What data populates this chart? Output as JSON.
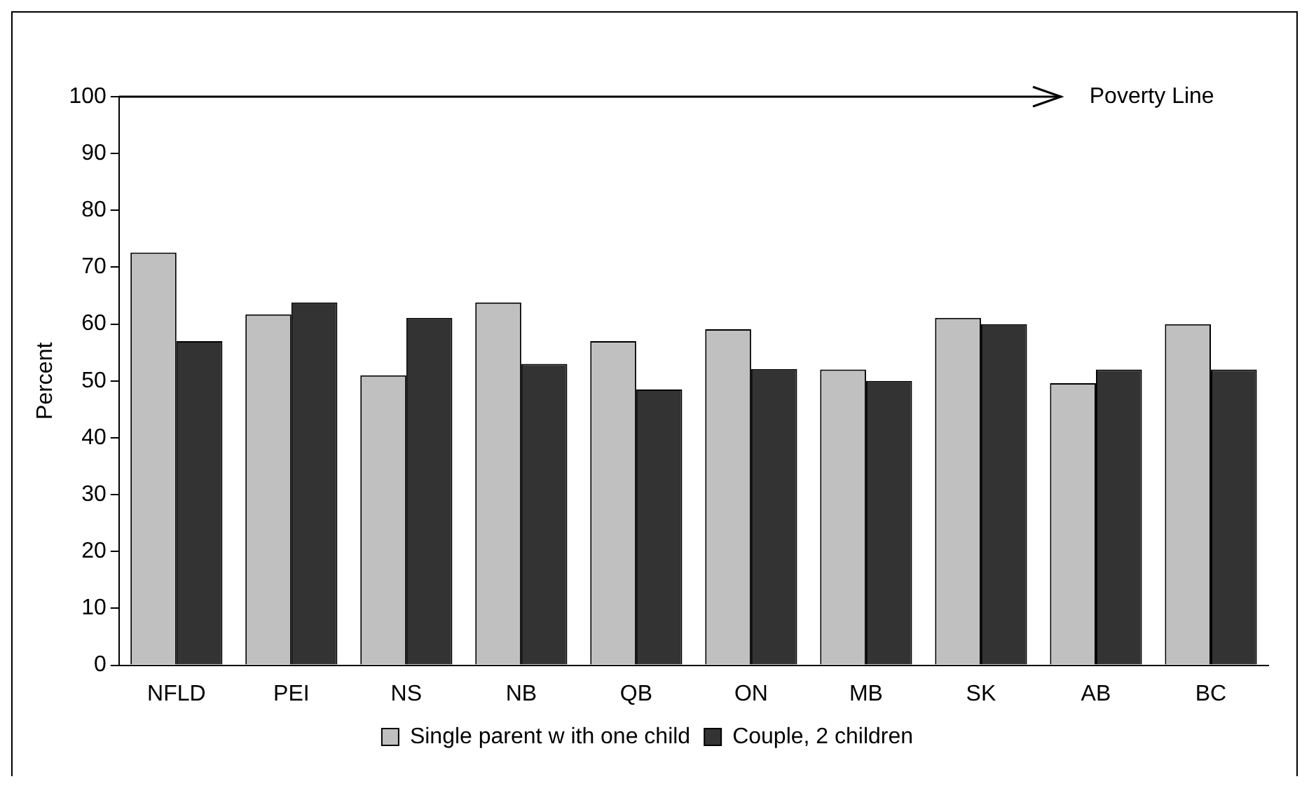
{
  "chart_data": {
    "type": "bar",
    "ylabel": "Percent",
    "categories": [
      "NFLD",
      "PEI",
      "NS",
      "NB",
      "QB",
      "ON",
      "MB",
      "SK",
      "AB",
      "BC"
    ],
    "series": [
      {
        "name": "Single parent w ith one child",
        "color": "#c0c0c0",
        "values": [
          72.6,
          61.7,
          51,
          63.8,
          57,
          59.1,
          52,
          61.1,
          49.6,
          60
        ]
      },
      {
        "name": "Couple, 2 children",
        "color": "#333333",
        "values": [
          57,
          63.8,
          61.1,
          53,
          48.5,
          52.1,
          50,
          60,
          52,
          52
        ]
      }
    ],
    "ylim": [
      0,
      100
    ],
    "yticks": [
      0,
      10,
      20,
      30,
      40,
      50,
      60,
      70,
      80,
      90,
      100
    ],
    "grid": false,
    "legend": "bottom",
    "ref_lines": [
      {
        "axis": "y",
        "value": 100,
        "label": "Poverty Line",
        "color": "#000000"
      }
    ]
  }
}
